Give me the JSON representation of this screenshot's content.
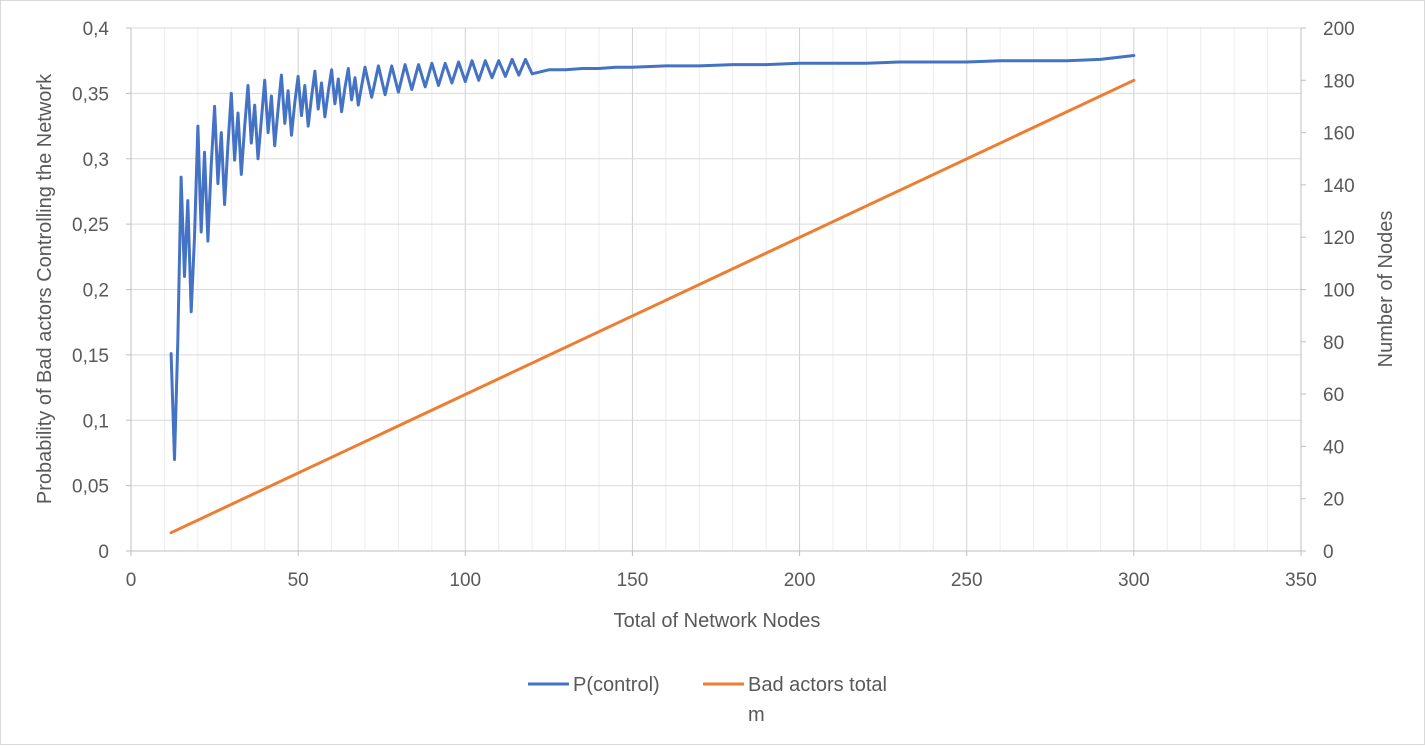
{
  "chart_data": {
    "type": "line",
    "title": "",
    "xlabel": "Total of Network Nodes",
    "ylabel": "Probability of Bad actors Controlling the Network",
    "y2label": "Number of  Nodes",
    "xlim": [
      0,
      350
    ],
    "ylim": [
      0,
      0.4
    ],
    "y2lim": [
      0,
      200
    ],
    "x_ticks": [
      0,
      50,
      100,
      150,
      200,
      250,
      300,
      350
    ],
    "x_tick_labels": [
      "0",
      "50",
      "100",
      "150",
      "200",
      "250",
      "300",
      "350"
    ],
    "y_tick_labels": [
      "0",
      "0,05",
      "0,1",
      "0,15",
      "0,2",
      "0,25",
      "0,3",
      "0,35",
      "0,4"
    ],
    "y_ticks": [
      0,
      0.05,
      0.1,
      0.15,
      0.2,
      0.25,
      0.3,
      0.35,
      0.4
    ],
    "y2_ticks": [
      0,
      20,
      40,
      60,
      80,
      100,
      120,
      140,
      160,
      180,
      200
    ],
    "y2_tick_labels": [
      "0",
      "20",
      "40",
      "60",
      "80",
      "100",
      "120",
      "140",
      "160",
      "180",
      "200"
    ],
    "grid": true,
    "legend_position": "bottom",
    "series": [
      {
        "name": "P(control)",
        "axis": "left",
        "color": "#4472c4",
        "x": [
          12,
          13,
          14,
          15,
          16,
          17,
          18,
          19,
          20,
          21,
          22,
          23,
          24,
          25,
          26,
          27,
          28,
          29,
          30,
          31,
          32,
          33,
          34,
          35,
          36,
          37,
          38,
          39,
          40,
          41,
          42,
          43,
          44,
          45,
          46,
          47,
          48,
          49,
          50,
          51,
          52,
          53,
          54,
          55,
          56,
          57,
          58,
          59,
          60,
          61,
          62,
          63,
          64,
          65,
          66,
          67,
          68,
          69,
          70,
          72,
          74,
          76,
          78,
          80,
          82,
          84,
          86,
          88,
          90,
          92,
          94,
          96,
          98,
          100,
          102,
          104,
          106,
          108,
          110,
          112,
          114,
          116,
          118,
          120,
          125,
          130,
          135,
          140,
          145,
          150,
          160,
          170,
          180,
          190,
          200,
          210,
          220,
          230,
          240,
          250,
          260,
          270,
          280,
          290,
          300
        ],
        "values": [
          0.151,
          0.07,
          0.16,
          0.286,
          0.21,
          0.268,
          0.183,
          0.24,
          0.325,
          0.244,
          0.305,
          0.237,
          0.295,
          0.34,
          0.281,
          0.32,
          0.265,
          0.31,
          0.35,
          0.299,
          0.335,
          0.288,
          0.325,
          0.356,
          0.312,
          0.341,
          0.3,
          0.33,
          0.36,
          0.32,
          0.348,
          0.31,
          0.338,
          0.364,
          0.327,
          0.352,
          0.318,
          0.343,
          0.363,
          0.333,
          0.356,
          0.325,
          0.347,
          0.367,
          0.338,
          0.358,
          0.332,
          0.351,
          0.368,
          0.342,
          0.361,
          0.336,
          0.354,
          0.369,
          0.345,
          0.362,
          0.341,
          0.356,
          0.37,
          0.347,
          0.371,
          0.349,
          0.371,
          0.351,
          0.372,
          0.353,
          0.372,
          0.355,
          0.373,
          0.356,
          0.373,
          0.358,
          0.374,
          0.359,
          0.375,
          0.36,
          0.375,
          0.362,
          0.375,
          0.363,
          0.376,
          0.364,
          0.376,
          0.365,
          0.368,
          0.368,
          0.369,
          0.369,
          0.37,
          0.37,
          0.371,
          0.371,
          0.372,
          0.372,
          0.373,
          0.373,
          0.373,
          0.374,
          0.374,
          0.374,
          0.375,
          0.375,
          0.375,
          0.376,
          0.379
        ]
      },
      {
        "name": "Bad actors total",
        "legend_label": "Bad actors total",
        "legend_label_extra": "m",
        "axis": "right",
        "color": "#ed7d31",
        "x": [
          12,
          300
        ],
        "values": [
          7,
          180
        ]
      }
    ]
  }
}
